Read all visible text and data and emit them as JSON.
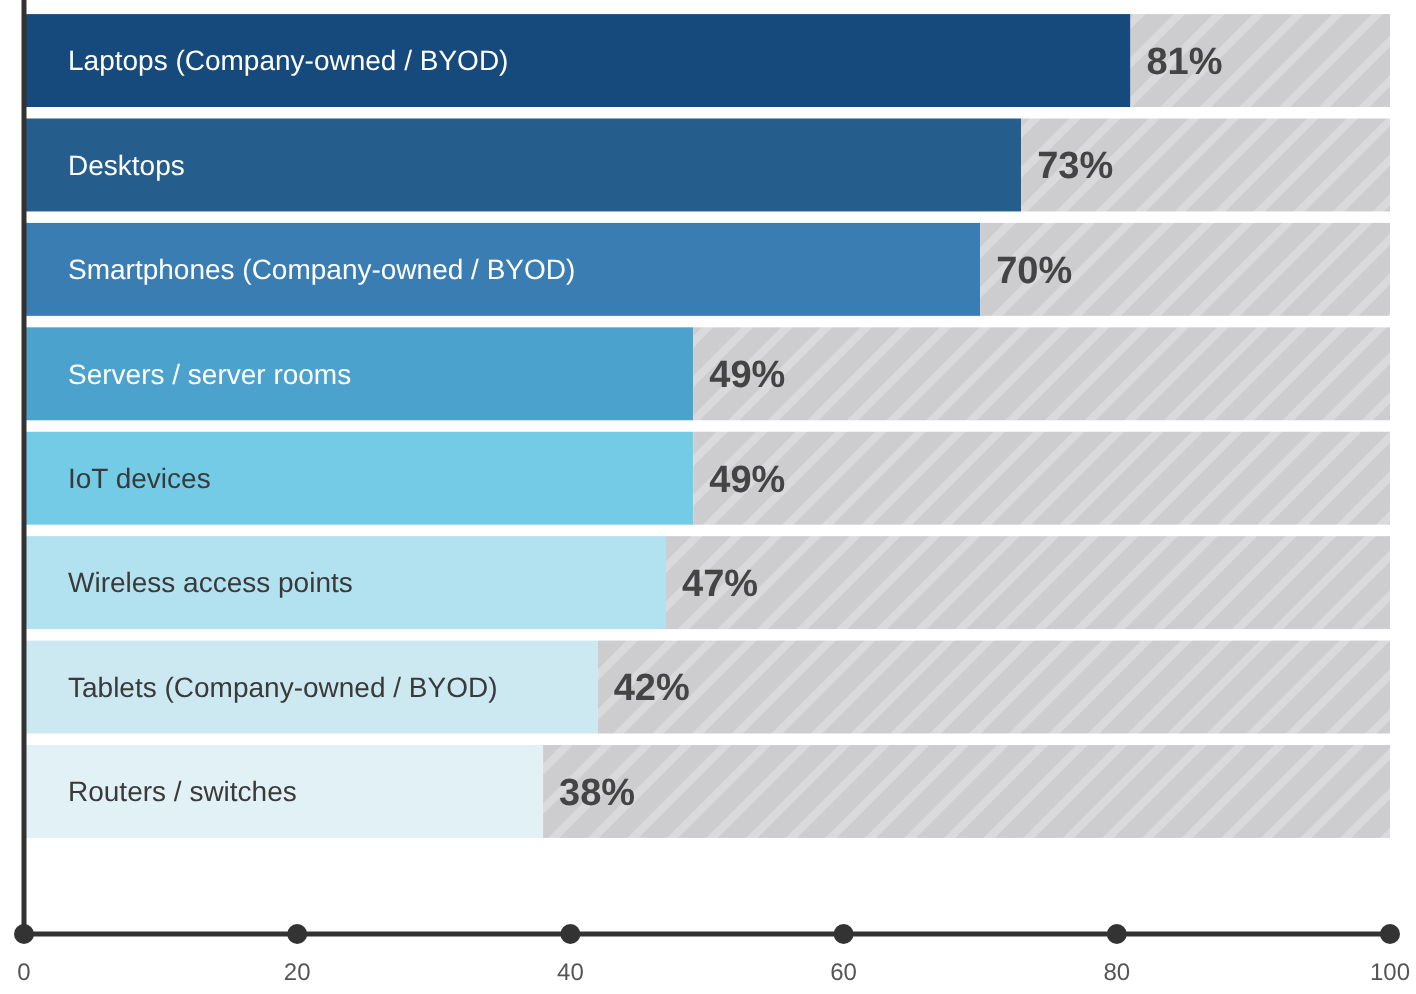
{
  "chart_data": {
    "type": "bar",
    "orientation": "horizontal",
    "stacked": true,
    "categories": [
      "Laptops (Company-owned / BYOD)",
      "Desktops",
      "Smartphones (Company-owned / BYOD)",
      "Servers / server rooms",
      "IoT devices",
      "Wireless access points",
      "Tablets (Company-owned / BYOD)",
      "Routers / switches"
    ],
    "series": [
      {
        "colors": [
          "#174a7c",
          "#255d8c",
          "#3a7db3",
          "#4aa2cd",
          "#74cbe5",
          "#b2e1ef",
          "#cce9f1",
          "#e1f1f5"
        ],
        "values": [
          81,
          73,
          70,
          49,
          49,
          47,
          42,
          38
        ],
        "value_labels": [
          "81%",
          "73%",
          "70%",
          "49%",
          "49%",
          "47%",
          "42%",
          "38%"
        ]
      },
      {
        "color": "#cdcdcf",
        "values": [
          19,
          27,
          30,
          51,
          51,
          53,
          58,
          62
        ]
      }
    ],
    "xlim": [
      0,
      100
    ],
    "xticks": [
      0,
      20,
      40,
      60,
      80,
      100
    ],
    "grid": false
  }
}
